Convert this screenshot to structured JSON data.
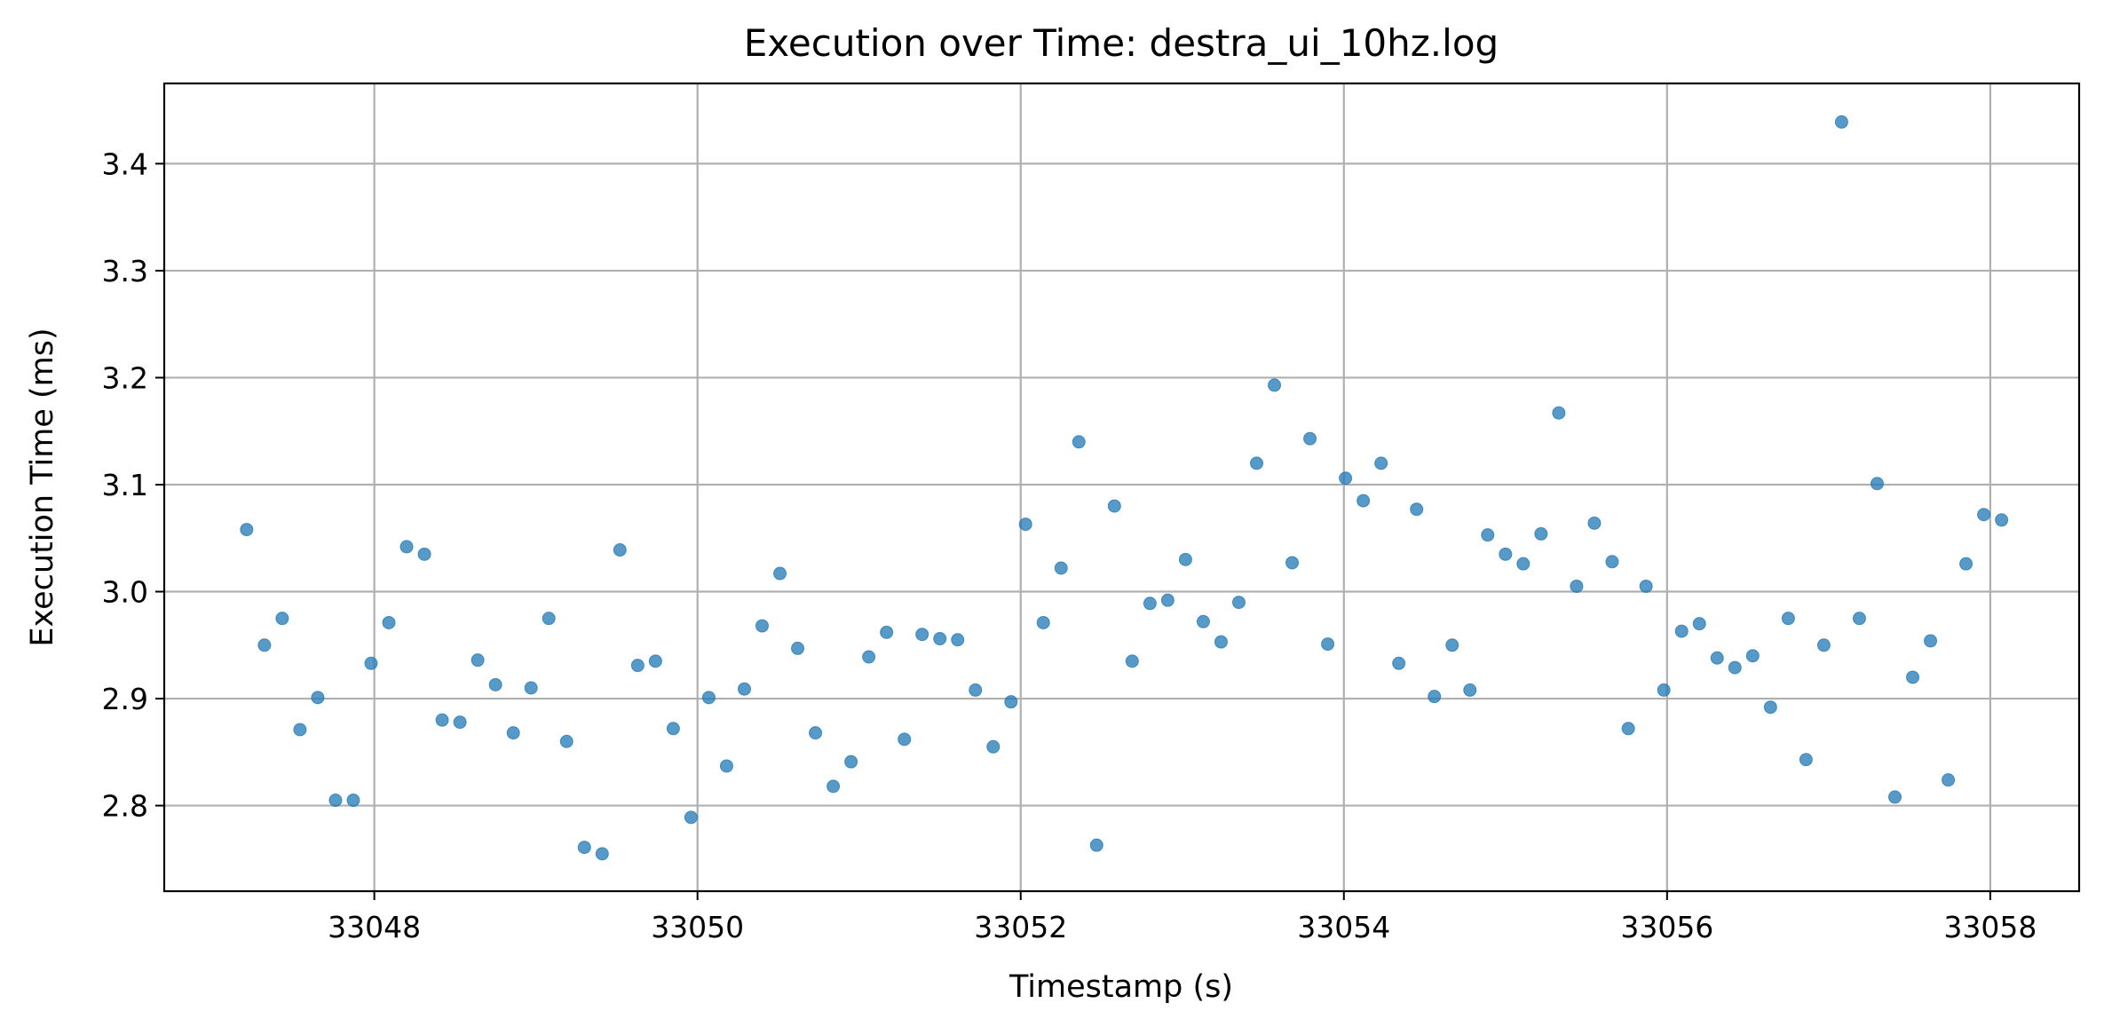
{
  "chart_data": {
    "type": "scatter",
    "title": "Execution over Time: destra_ui_10hz.log",
    "xlabel": "Timestamp (s)",
    "ylabel": "Execution Time (ms)",
    "xlim": [
      33046.7,
      33058.55
    ],
    "ylim": [
      2.72,
      3.475
    ],
    "xticks": [
      33048,
      33050,
      33052,
      33054,
      33056,
      33058
    ],
    "yticks": [
      2.8,
      2.9,
      3.0,
      3.1,
      3.2,
      3.3,
      3.4
    ],
    "grid": true,
    "point_color": "#1f77b4",
    "point_alpha": 0.75,
    "points": [
      [
        33047.21,
        3.058
      ],
      [
        33047.32,
        2.95
      ],
      [
        33047.43,
        2.975
      ],
      [
        33047.54,
        2.871
      ],
      [
        33047.65,
        2.901
      ],
      [
        33047.76,
        2.805
      ],
      [
        33047.87,
        2.805
      ],
      [
        33047.98,
        2.933
      ],
      [
        33048.09,
        2.971
      ],
      [
        33048.2,
        3.042
      ],
      [
        33048.31,
        3.035
      ],
      [
        33048.42,
        2.88
      ],
      [
        33048.53,
        2.878
      ],
      [
        33048.64,
        2.936
      ],
      [
        33048.75,
        2.913
      ],
      [
        33048.86,
        2.868
      ],
      [
        33048.97,
        2.91
      ],
      [
        33049.08,
        2.975
      ],
      [
        33049.19,
        2.86
      ],
      [
        33049.3,
        2.761
      ],
      [
        33049.41,
        2.755
      ],
      [
        33049.52,
        3.039
      ],
      [
        33049.63,
        2.931
      ],
      [
        33049.74,
        2.935
      ],
      [
        33049.85,
        2.872
      ],
      [
        33049.96,
        2.789
      ],
      [
        33050.07,
        2.901
      ],
      [
        33050.18,
        2.837
      ],
      [
        33050.29,
        2.909
      ],
      [
        33050.4,
        2.968
      ],
      [
        33050.51,
        3.017
      ],
      [
        33050.62,
        2.947
      ],
      [
        33050.73,
        2.868
      ],
      [
        33050.84,
        2.818
      ],
      [
        33050.95,
        2.841
      ],
      [
        33051.06,
        2.939
      ],
      [
        33051.17,
        2.962
      ],
      [
        33051.28,
        2.862
      ],
      [
        33051.39,
        2.96
      ],
      [
        33051.5,
        2.956
      ],
      [
        33051.61,
        2.955
      ],
      [
        33051.72,
        2.908
      ],
      [
        33051.83,
        2.855
      ],
      [
        33051.94,
        2.897
      ],
      [
        33052.03,
        3.063
      ],
      [
        33052.14,
        2.971
      ],
      [
        33052.25,
        3.022
      ],
      [
        33052.36,
        3.14
      ],
      [
        33052.47,
        2.763
      ],
      [
        33052.58,
        3.08
      ],
      [
        33052.69,
        2.935
      ],
      [
        33052.8,
        2.989
      ],
      [
        33052.91,
        2.992
      ],
      [
        33053.02,
        3.03
      ],
      [
        33053.13,
        2.972
      ],
      [
        33053.24,
        2.953
      ],
      [
        33053.35,
        2.99
      ],
      [
        33053.46,
        3.12
      ],
      [
        33053.57,
        3.193
      ],
      [
        33053.68,
        3.027
      ],
      [
        33053.79,
        3.143
      ],
      [
        33053.9,
        2.951
      ],
      [
        33054.01,
        3.106
      ],
      [
        33054.12,
        3.085
      ],
      [
        33054.23,
        3.12
      ],
      [
        33054.34,
        2.933
      ],
      [
        33054.45,
        3.077
      ],
      [
        33054.56,
        2.902
      ],
      [
        33054.67,
        2.95
      ],
      [
        33054.78,
        2.908
      ],
      [
        33054.89,
        3.053
      ],
      [
        33055.0,
        3.035
      ],
      [
        33055.11,
        3.026
      ],
      [
        33055.22,
        3.054
      ],
      [
        33055.33,
        3.167
      ],
      [
        33055.44,
        3.005
      ],
      [
        33055.55,
        3.064
      ],
      [
        33055.66,
        3.028
      ],
      [
        33055.76,
        2.872
      ],
      [
        33055.87,
        3.005
      ],
      [
        33055.98,
        2.908
      ],
      [
        33056.09,
        2.963
      ],
      [
        33056.2,
        2.97
      ],
      [
        33056.31,
        2.938
      ],
      [
        33056.42,
        2.929
      ],
      [
        33056.53,
        2.94
      ],
      [
        33056.64,
        2.892
      ],
      [
        33056.75,
        2.975
      ],
      [
        33056.86,
        2.843
      ],
      [
        33056.97,
        2.95
      ],
      [
        33057.08,
        3.439
      ],
      [
        33057.19,
        2.975
      ],
      [
        33057.3,
        3.101
      ],
      [
        33057.41,
        2.808
      ],
      [
        33057.52,
        2.92
      ],
      [
        33057.63,
        2.954
      ],
      [
        33057.74,
        2.824
      ],
      [
        33057.85,
        3.026
      ],
      [
        33057.96,
        3.072
      ],
      [
        33058.07,
        3.067
      ]
    ]
  }
}
